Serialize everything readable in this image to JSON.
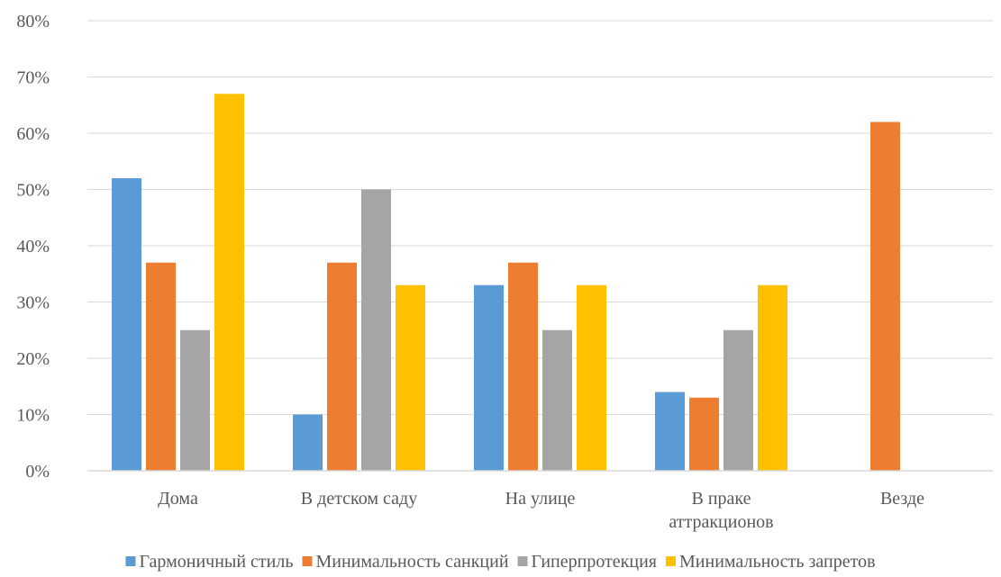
{
  "chart_data": {
    "type": "bar",
    "categories": [
      [
        "Дома"
      ],
      [
        "В детском саду"
      ],
      [
        "На улице"
      ],
      [
        "В праке",
        "аттракционов"
      ],
      [
        "Везде"
      ]
    ],
    "series": [
      {
        "name": "Гармоничный стиль",
        "color": "#5B9BD5",
        "values": [
          52,
          10,
          33,
          14,
          null
        ]
      },
      {
        "name": "Минимальность санкций",
        "color": "#ED7D31",
        "values": [
          37,
          37,
          37,
          13,
          62
        ]
      },
      {
        "name": "Гиперпротекция",
        "color": "#A5A5A5",
        "values": [
          25,
          50,
          25,
          25,
          null
        ]
      },
      {
        "name": "Минимальность запретов",
        "color": "#FFC000",
        "values": [
          67,
          33,
          33,
          33,
          null
        ]
      }
    ],
    "ylim": [
      0,
      80
    ],
    "y_ticks": [
      "0%",
      "10%",
      "20%",
      "30%",
      "40%",
      "50%",
      "60%",
      "70%",
      "80%"
    ],
    "y_tick_values": [
      0,
      10,
      20,
      30,
      40,
      50,
      60,
      70,
      80
    ],
    "grid": true,
    "gridline_color": "#D9D9D9",
    "legend_position": "bottom"
  }
}
